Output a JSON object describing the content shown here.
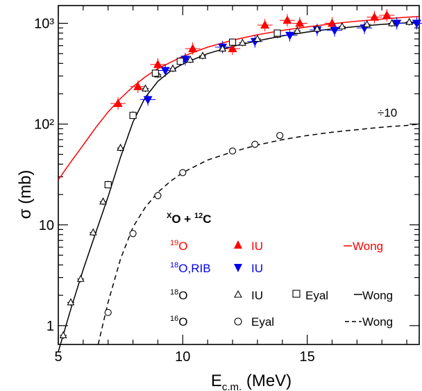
{
  "chart_data": {
    "type": "scatter",
    "xlabel": "E",
    "xlabel_sub": "c.m.",
    "xlabel_unit": " (MeV)",
    "ylabel": "σ (mb)",
    "xlim": [
      5,
      19.5
    ],
    "ylim": [
      0.65,
      1500
    ],
    "yscale": "log",
    "x_ticks": [
      "5",
      "10",
      "15"
    ],
    "x_tick_values": [
      5,
      10,
      15
    ],
    "y_ticks": [
      "1",
      "10",
      "10²",
      "10³"
    ],
    "y_tick_values": [
      1,
      10,
      100,
      1000
    ],
    "reaction": {
      "prefix": "X",
      "mid": "O + ",
      "iso": "12",
      "suffix": "C"
    },
    "scale_note": "÷10",
    "legend": {
      "o19": {
        "mass": "19",
        "sym": "O",
        "exp": "IU",
        "fit": "Wong",
        "color": "#ff0000"
      },
      "o18rib": {
        "mass": "18",
        "sym": "O,RIB",
        "exp": "IU",
        "color": "#0000ee"
      },
      "o18": {
        "mass": "18",
        "sym": "O",
        "exp": "IU",
        "exp2": "Eyal",
        "fit": "Wong"
      },
      "o16": {
        "mass": "16",
        "sym": "O",
        "exp": "Eyal",
        "fit": "Wong"
      }
    },
    "series": [
      {
        "name": "19O IU",
        "color": "#ff0000",
        "marker": "triangle-up-filled",
        "x": [
          7.4,
          8.2,
          9.0,
          10.4,
          12.0,
          13.3,
          14.2,
          14.7,
          16.0,
          17.7,
          18.2
        ],
        "y": [
          160,
          235,
          390,
          560,
          560,
          960,
          1070,
          1000,
          1000,
          1150,
          1200
        ]
      },
      {
        "name": "18O,RIB IU",
        "color": "#0000ee",
        "marker": "triangle-down-filled",
        "x": [
          8.6,
          9.3,
          10.1,
          11.6,
          12.9,
          14.3,
          15.4,
          16.1,
          17.3,
          18.6,
          19.4
        ],
        "y": [
          175,
          340,
          440,
          580,
          660,
          760,
          860,
          850,
          900,
          1000,
          1000
        ]
      },
      {
        "name": "18O IU",
        "color": "#000000",
        "marker": "triangle-up-open",
        "x": [
          5.2,
          5.5,
          5.9,
          6.4,
          6.8,
          7.0,
          7.5,
          8.0,
          8.5,
          9.0,
          9.6,
          10.3,
          10.8,
          11.6,
          12.4,
          13.0,
          13.8,
          14.6,
          15.4,
          16.4,
          17.4,
          18.4,
          19.1
        ],
        "y": [
          0.8,
          1.7,
          2.9,
          8.4,
          17,
          25,
          58,
          122,
          225,
          310,
          355,
          435,
          475,
          560,
          640,
          700,
          770,
          840,
          880,
          930,
          975,
          1000,
          1030
        ]
      },
      {
        "name": "18O Eyal",
        "color": "#000000",
        "marker": "square-open",
        "x": [
          7.0,
          8.0,
          8.9,
          9.9,
          12.0,
          13.8
        ],
        "y": [
          25,
          122,
          320,
          420,
          650,
          800
        ]
      },
      {
        "name": "16O Eyal",
        "color": "#000000",
        "marker": "circle-open",
        "x": [
          7.0,
          8.0,
          9.0,
          10.0,
          12.0,
          12.9,
          13.9
        ],
        "y": [
          1.35,
          8.2,
          19.5,
          33,
          54,
          63,
          77
        ]
      }
    ],
    "fits": [
      {
        "name": "19O Wong",
        "color": "#ff0000",
        "dash": "solid",
        "x": [
          5.0,
          5.5,
          6.0,
          6.5,
          7.0,
          7.5,
          8.0,
          8.5,
          9.0,
          10.0,
          11.0,
          12.0,
          13.0,
          14.0,
          15.0,
          16.0,
          17.0,
          18.0,
          19.0,
          19.5
        ],
        "y": [
          28,
          42,
          62,
          92,
          132,
          180,
          235,
          295,
          355,
          470,
          580,
          680,
          770,
          850,
          920,
          990,
          1050,
          1100,
          1150,
          1170
        ]
      },
      {
        "name": "18O Wong",
        "color": "#000000",
        "dash": "solid",
        "x": [
          5.0,
          5.5,
          6.0,
          6.5,
          7.0,
          7.5,
          8.0,
          8.5,
          9.0,
          9.5,
          10.0,
          11.0,
          12.0,
          13.0,
          14.0,
          15.0,
          16.0,
          17.0,
          18.0,
          19.0,
          19.5
        ],
        "y": [
          0.55,
          1.45,
          3.6,
          8.3,
          19,
          47,
          105,
          185,
          265,
          335,
          395,
          500,
          590,
          670,
          750,
          820,
          880,
          930,
          975,
          1010,
          1025
        ]
      },
      {
        "name": "16O Wong",
        "color": "#000000",
        "dash": "dashed",
        "x": [
          6.6,
          7.0,
          7.5,
          8.0,
          8.5,
          9.0,
          9.5,
          10.0,
          11.0,
          12.0,
          13.0,
          14.0,
          15.0,
          16.0,
          17.0,
          18.0,
          19.0,
          19.5
        ],
        "y": [
          0.65,
          1.7,
          4.6,
          9.5,
          15,
          21,
          27,
          33,
          44,
          53,
          62,
          70,
          77,
          83,
          88,
          93,
          97,
          100
        ]
      }
    ]
  }
}
